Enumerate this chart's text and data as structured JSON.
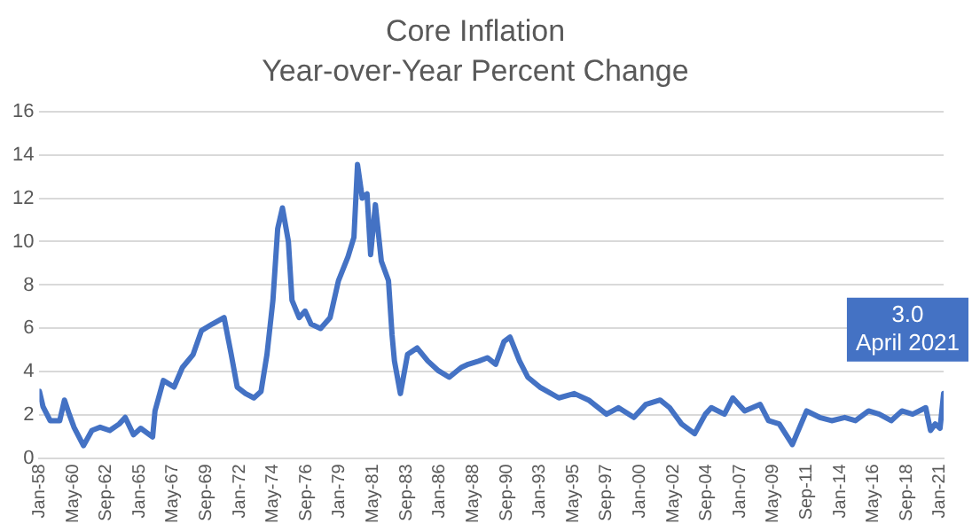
{
  "chart_data": {
    "type": "line",
    "title": "Core Inflation",
    "subtitle": "Year-over-Year Percent Change",
    "x": [
      "1958-01",
      "1958-04",
      "1958-10",
      "1959-06",
      "1959-10",
      "1960-02",
      "1960-06",
      "1961-02",
      "1961-09",
      "1962-04",
      "1962-12",
      "1963-08",
      "1964-01",
      "1964-08",
      "1965-02",
      "1965-12",
      "1966-02",
      "1966-09",
      "1967-06",
      "1968-01",
      "1968-10",
      "1969-05",
      "1970-02",
      "1970-07",
      "1970-12",
      "1971-06",
      "1971-11",
      "1972-06",
      "1973-01",
      "1973-07",
      "1973-12",
      "1974-05",
      "1974-09",
      "1975-01",
      "1975-06",
      "1975-09",
      "1976-03",
      "1976-08",
      "1977-01",
      "1977-09",
      "1978-05",
      "1978-12",
      "1979-08",
      "1980-01",
      "1980-04",
      "1980-08",
      "1980-12",
      "1981-03",
      "1981-07",
      "1981-12",
      "1982-06",
      "1982-09",
      "1982-11",
      "1983-04",
      "1983-10",
      "1984-06",
      "1985-03",
      "1985-12",
      "1986-09",
      "1987-07",
      "1988-01",
      "1988-10",
      "1989-05",
      "1989-12",
      "1990-07",
      "1990-12",
      "1991-08",
      "1992-03",
      "1993-01",
      "1994-05",
      "1995-06",
      "1996-06",
      "1997-09",
      "1998-07",
      "1999-08",
      "2000-06",
      "2001-06",
      "2002-02",
      "2002-12",
      "2003-11",
      "2004-08",
      "2005-01",
      "2005-12",
      "2006-07",
      "2007-05",
      "2008-06",
      "2009-01",
      "2009-10",
      "2010-09",
      "2011-09",
      "2012-08",
      "2013-06",
      "2014-05",
      "2015-02",
      "2016-01",
      "2016-10",
      "2017-08",
      "2018-05",
      "2019-02",
      "2020-01",
      "2020-05",
      "2020-09",
      "2021-01",
      "2021-04"
    ],
    "series": [
      {
        "color": "#4472c4",
        "values": [
          3.1,
          2.4,
          1.75,
          1.75,
          2.7,
          2.05,
          1.45,
          0.6,
          1.3,
          1.45,
          1.3,
          1.6,
          1.9,
          1.1,
          1.4,
          1.0,
          2.2,
          3.6,
          3.3,
          4.2,
          4.8,
          5.9,
          6.2,
          6.35,
          6.5,
          4.8,
          3.3,
          3.0,
          2.8,
          3.1,
          4.8,
          7.3,
          10.6,
          11.55,
          10.0,
          7.3,
          6.5,
          6.8,
          6.2,
          6.0,
          6.5,
          8.2,
          9.3,
          10.2,
          13.55,
          12.0,
          12.2,
          9.4,
          11.7,
          9.1,
          8.2,
          5.7,
          4.5,
          3.0,
          4.8,
          5.1,
          4.5,
          4.05,
          3.75,
          4.2,
          4.35,
          4.5,
          4.65,
          4.35,
          5.4,
          5.6,
          4.5,
          3.75,
          3.3,
          2.8,
          3.0,
          2.7,
          2.05,
          2.35,
          1.9,
          2.5,
          2.7,
          2.35,
          1.6,
          1.15,
          2.05,
          2.35,
          2.05,
          2.8,
          2.2,
          2.5,
          1.75,
          1.6,
          0.65,
          2.2,
          1.9,
          1.75,
          1.9,
          1.75,
          2.2,
          2.05,
          1.75,
          2.2,
          2.05,
          2.35,
          1.3,
          1.6,
          1.4,
          3.0
        ]
      }
    ],
    "xlim": [
      "1958-01",
      "2021-04"
    ],
    "xticks": [
      {
        "value": "1958-01",
        "label": "Jan-58"
      },
      {
        "value": "1960-05",
        "label": "May-60"
      },
      {
        "value": "1962-09",
        "label": "Sep-62"
      },
      {
        "value": "1965-01",
        "label": "Jan-65"
      },
      {
        "value": "1967-05",
        "label": "May-67"
      },
      {
        "value": "1969-09",
        "label": "Sep-69"
      },
      {
        "value": "1972-01",
        "label": "Jan-72"
      },
      {
        "value": "1974-05",
        "label": "May-74"
      },
      {
        "value": "1976-09",
        "label": "Sep-76"
      },
      {
        "value": "1979-01",
        "label": "Jan-79"
      },
      {
        "value": "1981-05",
        "label": "May-81"
      },
      {
        "value": "1983-09",
        "label": "Sep-83"
      },
      {
        "value": "1986-01",
        "label": "Jan-86"
      },
      {
        "value": "1988-05",
        "label": "May-88"
      },
      {
        "value": "1990-09",
        "label": "Sep-90"
      },
      {
        "value": "1993-01",
        "label": "Jan-93"
      },
      {
        "value": "1995-05",
        "label": "May-95"
      },
      {
        "value": "1997-09",
        "label": "Sep-97"
      },
      {
        "value": "2000-01",
        "label": "Jan-00"
      },
      {
        "value": "2002-05",
        "label": "May-02"
      },
      {
        "value": "2004-09",
        "label": "Sep-04"
      },
      {
        "value": "2007-01",
        "label": "Jan-07"
      },
      {
        "value": "2009-05",
        "label": "May-09"
      },
      {
        "value": "2011-09",
        "label": "Sep-11"
      },
      {
        "value": "2014-01",
        "label": "Jan-14"
      },
      {
        "value": "2016-05",
        "label": "May-16"
      },
      {
        "value": "2018-09",
        "label": "Sep-18"
      },
      {
        "value": "2021-01",
        "label": "Jan-21"
      }
    ],
    "ylim": [
      0,
      16
    ],
    "yticks": [
      0,
      2,
      4,
      6,
      8,
      10,
      12,
      14,
      16
    ],
    "annotations": [
      {
        "text": "3.0\nApril 2021",
        "x": "2021-04",
        "y": 3.0
      }
    ],
    "grid": "y",
    "legend": false,
    "marker": "none",
    "line_style": "solid"
  }
}
